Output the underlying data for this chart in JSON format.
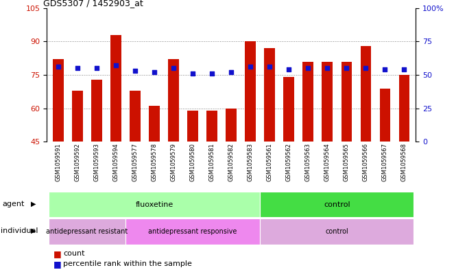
{
  "title": "GDS5307 / 1452903_at",
  "samples": [
    "GSM1059591",
    "GSM1059592",
    "GSM1059593",
    "GSM1059594",
    "GSM1059577",
    "GSM1059578",
    "GSM1059579",
    "GSM1059580",
    "GSM1059581",
    "GSM1059582",
    "GSM1059583",
    "GSM1059561",
    "GSM1059562",
    "GSM1059563",
    "GSM1059564",
    "GSM1059565",
    "GSM1059566",
    "GSM1059567",
    "GSM1059568"
  ],
  "counts": [
    82,
    68,
    73,
    93,
    68,
    61,
    82,
    59,
    59,
    60,
    90,
    87,
    74,
    81,
    81,
    81,
    88,
    69,
    75
  ],
  "percentiles": [
    56,
    55,
    55,
    57,
    53,
    52,
    55,
    51,
    51,
    52,
    56,
    56,
    54,
    55,
    55,
    55,
    55,
    54,
    54
  ],
  "bar_color": "#cc1100",
  "dot_color": "#1111cc",
  "ylim_left": [
    45,
    105
  ],
  "ylim_right": [
    0,
    100
  ],
  "yticks_left": [
    45,
    60,
    75,
    90,
    105
  ],
  "yticks_right": [
    0,
    25,
    50,
    75,
    100
  ],
  "ytick_labels_right": [
    "0",
    "25",
    "50",
    "75",
    "100%"
  ],
  "grid_lines": [
    60,
    75,
    90
  ],
  "agent_groups": [
    {
      "label": "fluoxetine",
      "start": 0,
      "end": 11,
      "color": "#aaffaa"
    },
    {
      "label": "control",
      "start": 11,
      "end": 19,
      "color": "#44dd44"
    }
  ],
  "individual_groups": [
    {
      "label": "antidepressant resistant",
      "start": 0,
      "end": 4,
      "color": "#ddaadd"
    },
    {
      "label": "antidepressant responsive",
      "start": 4,
      "end": 11,
      "color": "#ee88ee"
    },
    {
      "label": "control",
      "start": 11,
      "end": 19,
      "color": "#ddaadd"
    }
  ],
  "bar_width": 0.55
}
